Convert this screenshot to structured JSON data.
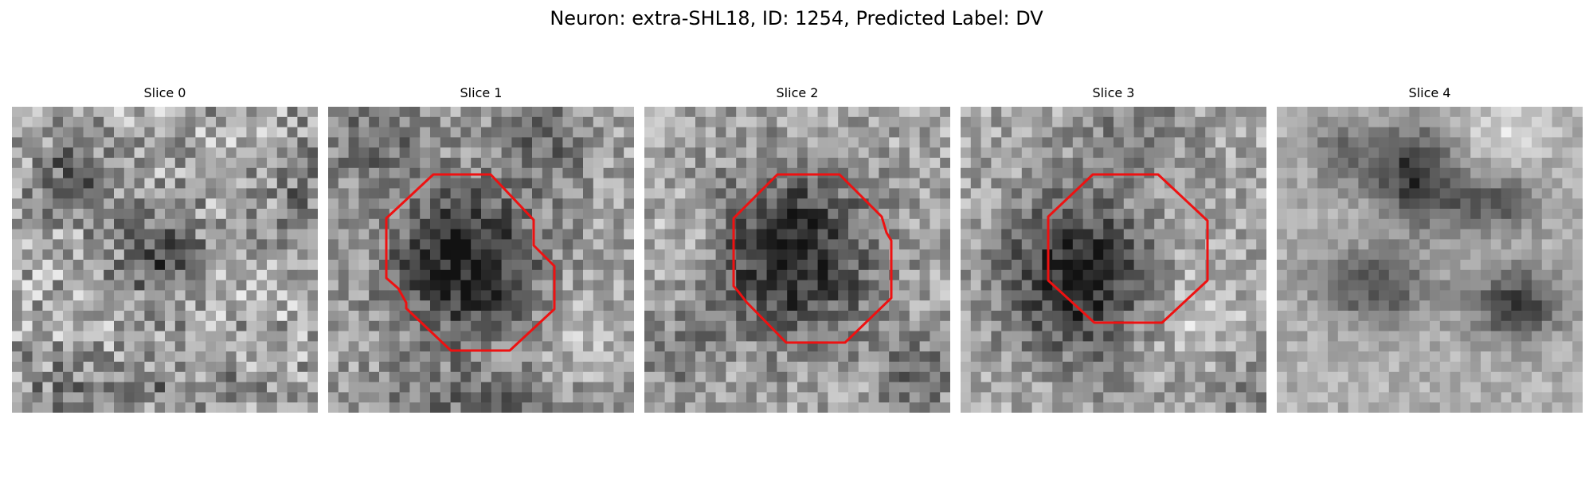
{
  "figure": {
    "title": "Neuron: extra-SHL18, ID: 1254, Predicted Label: DV"
  },
  "colors": {
    "outline": "#ee1111",
    "background": "#ffffff"
  },
  "panels": [
    {
      "title": "Slice 0",
      "has_outline": false,
      "texture": "diagonal-noise"
    },
    {
      "title": "Slice 1",
      "has_outline": true,
      "texture": "dark-blob"
    },
    {
      "title": "Slice 2",
      "has_outline": true,
      "texture": "dark-blob"
    },
    {
      "title": "Slice 3",
      "has_outline": true,
      "texture": "dark-blob"
    },
    {
      "title": "Slice 4",
      "has_outline": false,
      "texture": "smooth-blobs"
    }
  ]
}
